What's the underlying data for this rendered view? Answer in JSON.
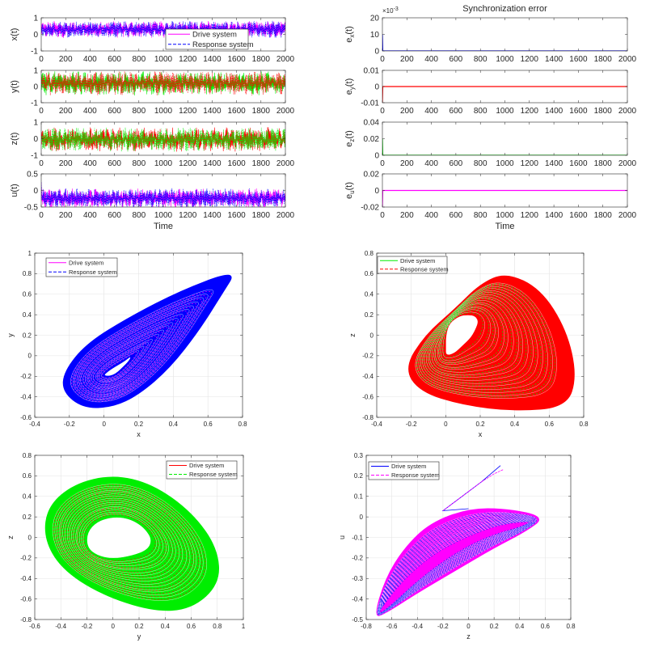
{
  "chart_data": [
    {
      "type": "line",
      "id": "x_t",
      "ylabel": "x",
      "ylabel_sub": "",
      "ylabel_suffix": "(t)",
      "xlim": [
        0,
        2000
      ],
      "ylim": [
        -1,
        1
      ],
      "xticks": [
        "0",
        "200",
        "400",
        "600",
        "800",
        "1000",
        "1200",
        "1400",
        "1600",
        "1800",
        "2000"
      ],
      "yticks": [
        "-1",
        "0",
        "1"
      ],
      "xlabel": "",
      "series": [
        {
          "name": "Drive system",
          "color": "#ff00ff",
          "style": "solid",
          "range": [
            -0.15,
            0.75
          ],
          "start": 0.1
        },
        {
          "name": "Response system",
          "color": "#0000ff",
          "style": "dashed",
          "range": [
            -0.15,
            0.75
          ],
          "start": 0.1
        }
      ],
      "legend": {
        "entries": [
          "Drive system",
          "Response system"
        ],
        "position": "bottom-center"
      }
    },
    {
      "type": "line",
      "id": "y_t",
      "ylabel": "y",
      "ylabel_sub": "",
      "ylabel_suffix": "(t)",
      "xlim": [
        0,
        2000
      ],
      "ylim": [
        -1,
        1
      ],
      "xticks": [
        "0",
        "200",
        "400",
        "600",
        "800",
        "1000",
        "1200",
        "1400",
        "1600",
        "1800",
        "2000"
      ],
      "yticks": [
        "-1",
        "0",
        "1"
      ],
      "xlabel": "",
      "series": [
        {
          "name": "Drive system",
          "color": "#00ee00",
          "style": "solid",
          "range": [
            -0.45,
            0.85
          ],
          "start": 0.0
        },
        {
          "name": "Response system",
          "color": "#ff0000",
          "style": "dashed",
          "range": [
            -0.45,
            0.85
          ],
          "start": 0.0
        }
      ]
    },
    {
      "type": "line",
      "id": "z_t",
      "ylabel": "z",
      "ylabel_sub": "",
      "ylabel_suffix": "(t)",
      "xlim": [
        0,
        2000
      ],
      "ylim": [
        -1,
        1
      ],
      "xticks": [
        "0",
        "200",
        "400",
        "600",
        "800",
        "1000",
        "1200",
        "1400",
        "1600",
        "1800",
        "2000"
      ],
      "yticks": [
        "-1",
        "0",
        "1"
      ],
      "xlabel": "",
      "series": [
        {
          "name": "Drive system",
          "color": "#ff0000",
          "style": "solid",
          "range": [
            -0.7,
            0.6
          ],
          "start": 0.0
        },
        {
          "name": "Response system",
          "color": "#00ee00",
          "style": "dashed",
          "range": [
            -0.7,
            0.6
          ],
          "start": 0.0
        }
      ]
    },
    {
      "type": "line",
      "id": "u_t",
      "ylabel": "u",
      "ylabel_sub": "",
      "ylabel_suffix": "(t)",
      "xlim": [
        0,
        2000
      ],
      "ylim": [
        -0.5,
        0.5
      ],
      "xticks": [
        "0",
        "200",
        "400",
        "600",
        "800",
        "1000",
        "1200",
        "1400",
        "1600",
        "1800",
        "2000"
      ],
      "yticks": [
        "-0.5",
        "0",
        "0.5"
      ],
      "xlabel": "Time",
      "series": [
        {
          "name": "Drive system",
          "color": "#ff00ff",
          "style": "solid",
          "range": [
            -0.5,
            0.03
          ],
          "start": 0.25
        },
        {
          "name": "Response system",
          "color": "#0000ff",
          "style": "dashed",
          "range": [
            -0.5,
            0.03
          ],
          "start": 0.25
        }
      ]
    },
    {
      "type": "line",
      "id": "e_x",
      "title": "Synchronization error",
      "ylabel": "e",
      "ylabel_sub": "x",
      "ylabel_suffix": "(t)",
      "xlim": [
        0,
        2000
      ],
      "ylim": [
        0,
        20
      ],
      "exponent_label": "×10",
      "exponent_power": "-3",
      "xticks": [
        "0",
        "200",
        "400",
        "600",
        "800",
        "1000",
        "1200",
        "1400",
        "1600",
        "1800",
        "2000"
      ],
      "yticks": [
        "0",
        "10",
        "20"
      ],
      "xlabel": "",
      "series": [
        {
          "name": "e_x",
          "color": "#0000ff",
          "x": [
            0,
            3,
            2000
          ],
          "y": [
            10,
            0,
            0
          ]
        }
      ]
    },
    {
      "type": "line",
      "id": "e_y",
      "ylabel": "e",
      "ylabel_sub": "y",
      "ylabel_suffix": "(t)",
      "xlim": [
        0,
        2000
      ],
      "ylim": [
        -0.01,
        0.01
      ],
      "xticks": [
        "0",
        "200",
        "400",
        "600",
        "800",
        "1000",
        "1200",
        "1400",
        "1600",
        "1800",
        "2000"
      ],
      "yticks": [
        "-0.01",
        "0",
        "0.01"
      ],
      "xlabel": "",
      "series": [
        {
          "name": "e_y",
          "color": "#ff0000",
          "x": [
            0,
            3,
            2000
          ],
          "y": [
            -0.01,
            0,
            0
          ]
        }
      ]
    },
    {
      "type": "line",
      "id": "e_z",
      "ylabel": "e",
      "ylabel_sub": "z",
      "ylabel_suffix": "(t)",
      "xlim": [
        0,
        2000
      ],
      "ylim": [
        0,
        0.04
      ],
      "xticks": [
        "0",
        "200",
        "400",
        "600",
        "800",
        "1000",
        "1200",
        "1400",
        "1600",
        "1800",
        "2000"
      ],
      "yticks": [
        "0",
        "0.02",
        "0.04"
      ],
      "xlabel": "",
      "series": [
        {
          "name": "e_z",
          "color": "#00cc00",
          "x": [
            0,
            3,
            2000
          ],
          "y": [
            0.02,
            0,
            0
          ]
        }
      ]
    },
    {
      "type": "line",
      "id": "e_u",
      "ylabel": "e",
      "ylabel_sub": "u",
      "ylabel_suffix": "(t)",
      "xlim": [
        0,
        2000
      ],
      "ylim": [
        -0.02,
        0.02
      ],
      "xticks": [
        "0",
        "200",
        "400",
        "600",
        "800",
        "1000",
        "1200",
        "1400",
        "1600",
        "1800",
        "2000"
      ],
      "yticks": [
        "-0.02",
        "0",
        "0.02"
      ],
      "xlabel": "Time",
      "series": [
        {
          "name": "e_u",
          "color": "#ff00ff",
          "x": [
            0,
            3,
            2000
          ],
          "y": [
            -0.02,
            0,
            0
          ]
        }
      ]
    },
    {
      "type": "line",
      "id": "phase_xy",
      "xlabel": "x",
      "ylabel": "y",
      "xlim": [
        -0.4,
        0.8
      ],
      "ylim": [
        -0.6,
        1
      ],
      "grid": true,
      "xticks": [
        "-0.4",
        "-0.2",
        "0",
        "0.2",
        "0.4",
        "0.6",
        "0.8"
      ],
      "yticks": [
        "-0.6",
        "-0.4",
        "-0.2",
        "0",
        "0.2",
        "0.4",
        "0.6",
        "0.8",
        "1"
      ],
      "fill_color": "#0000ff",
      "ring_color": "#ff00ff",
      "fill_hole": true,
      "outer": [
        [
          0.77,
          0.84
        ],
        [
          0.45,
          0.64
        ],
        [
          0.15,
          0.38
        ],
        [
          -0.1,
          0.12
        ],
        [
          -0.23,
          -0.15
        ],
        [
          -0.24,
          -0.35
        ],
        [
          -0.12,
          -0.51
        ],
        [
          0.05,
          -0.5
        ],
        [
          0.2,
          -0.38
        ],
        [
          0.38,
          -0.12
        ],
        [
          0.55,
          0.25
        ],
        [
          0.68,
          0.6
        ]
      ],
      "inner": [
        [
          0.15,
          -0.01
        ],
        [
          0.12,
          -0.05
        ],
        [
          0.08,
          -0.09
        ],
        [
          0.04,
          -0.13
        ],
        [
          0.01,
          -0.17
        ],
        [
          0,
          -0.19
        ],
        [
          0.02,
          -0.2
        ],
        [
          0.05,
          -0.19
        ],
        [
          0.08,
          -0.16
        ],
        [
          0.11,
          -0.11
        ],
        [
          0.14,
          -0.06
        ],
        [
          0.155,
          -0.02
        ]
      ],
      "legend": {
        "entries": [
          "Drive system",
          "Response system"
        ],
        "colors": [
          "#ff00ff",
          "#0000ff"
        ],
        "position": "top-left"
      }
    },
    {
      "type": "line",
      "id": "phase_xz",
      "xlabel": "x",
      "ylabel": "z",
      "xlim": [
        -0.4,
        0.8
      ],
      "ylim": [
        -0.8,
        0.8
      ],
      "grid": true,
      "xticks": [
        "-0.4",
        "-0.2",
        "0",
        "0.2",
        "0.4",
        "0.6",
        "0.8"
      ],
      "yticks": [
        "-0.8",
        "-0.6",
        "-0.4",
        "-0.2",
        "0",
        "0.2",
        "0.4",
        "0.6",
        "0.8"
      ],
      "fill_color": "#ff0000",
      "ring_color": "#00ee00",
      "fill_hole": true,
      "outer": [
        [
          0.35,
          0.61
        ],
        [
          0.2,
          0.5
        ],
        [
          0.05,
          0.25
        ],
        [
          -0.12,
          0
        ],
        [
          -0.24,
          -0.32
        ],
        [
          -0.15,
          -0.55
        ],
        [
          0.1,
          -0.68
        ],
        [
          0.4,
          -0.74
        ],
        [
          0.7,
          -0.7
        ],
        [
          0.76,
          -0.4
        ],
        [
          0.7,
          0.05
        ],
        [
          0.55,
          0.45
        ]
      ],
      "inner": [
        [
          0.13,
          0.2
        ],
        [
          0.08,
          0.19
        ],
        [
          0.02,
          0.12
        ],
        [
          0,
          0
        ],
        [
          0,
          -0.12
        ],
        [
          0,
          -0.2
        ],
        [
          0.05,
          -0.18
        ],
        [
          0.1,
          -0.1
        ],
        [
          0.15,
          -0.02
        ],
        [
          0.18,
          0.08
        ],
        [
          0.19,
          0.14
        ],
        [
          0.17,
          0.19
        ]
      ],
      "legend": {
        "entries": [
          "Drive system",
          "Response system"
        ],
        "colors": [
          "#00ee00",
          "#ff0000"
        ],
        "position": "top-left"
      }
    },
    {
      "type": "line",
      "id": "phase_yz",
      "xlabel": "y",
      "ylabel": "z",
      "xlim": [
        -0.6,
        1
      ],
      "ylim": [
        -0.8,
        0.8
      ],
      "grid": true,
      "xticks": [
        "-0.6",
        "-0.4",
        "-0.2",
        "0",
        "0.2",
        "0.4",
        "0.6",
        "0.8",
        "1"
      ],
      "yticks": [
        "-0.8",
        "-0.6",
        "-0.4",
        "-0.2",
        "0",
        "0.2",
        "0.4",
        "0.6",
        "0.8"
      ],
      "fill_color": "#00ee00",
      "ring_color": "#ff0000",
      "fill_hole": true,
      "outer": [
        [
          0,
          0.61
        ],
        [
          -0.3,
          0.52
        ],
        [
          -0.5,
          0.3
        ],
        [
          -0.53,
          0.0
        ],
        [
          -0.4,
          -0.3
        ],
        [
          -0.1,
          -0.55
        ],
        [
          0.3,
          -0.72
        ],
        [
          0.6,
          -0.7
        ],
        [
          0.82,
          -0.45
        ],
        [
          0.8,
          -0.1
        ],
        [
          0.6,
          0.25
        ],
        [
          0.3,
          0.52
        ]
      ],
      "inner": [
        [
          0,
          0.2
        ],
        [
          -0.12,
          0.16
        ],
        [
          -0.2,
          0.05
        ],
        [
          -0.2,
          -0.1
        ],
        [
          -0.12,
          -0.18
        ],
        [
          0,
          -0.21
        ],
        [
          0.15,
          -0.18
        ],
        [
          0.27,
          -0.12
        ],
        [
          0.3,
          -0.02
        ],
        [
          0.25,
          0.08
        ],
        [
          0.18,
          0.15
        ],
        [
          0.1,
          0.19
        ]
      ],
      "legend": {
        "entries": [
          "Drive system",
          "Response system"
        ],
        "colors": [
          "#ff0000",
          "#00ee00"
        ],
        "position": "top-right"
      }
    },
    {
      "type": "line",
      "id": "phase_zu",
      "xlabel": "z",
      "ylabel": "u",
      "xlim": [
        -0.8,
        0.8
      ],
      "ylim": [
        -0.5,
        0.3
      ],
      "grid": true,
      "xticks": [
        "-0.8",
        "-0.6",
        "-0.4",
        "-0.2",
        "0",
        "0.2",
        "0.4",
        "0.6",
        "0.8"
      ],
      "yticks": [
        "-0.5",
        "-0.4",
        "-0.3",
        "-0.2",
        "-0.1",
        "0",
        "0.1",
        "0.2",
        "0.3"
      ],
      "fill_color": "#ff00ff",
      "ring_color": "#0000ff",
      "fill_hole": false,
      "outer": [
        [
          -0.74,
          -0.49
        ],
        [
          -0.65,
          -0.3
        ],
        [
          -0.5,
          -0.15
        ],
        [
          -0.3,
          -0.03
        ],
        [
          0,
          0.04
        ],
        [
          0.3,
          0.04
        ],
        [
          0.6,
          0
        ],
        [
          0.45,
          -0.07
        ],
        [
          0.2,
          -0.15
        ],
        [
          -0.1,
          -0.26
        ],
        [
          -0.4,
          -0.37
        ],
        [
          -0.65,
          -0.47
        ]
      ],
      "inner": [
        [
          -0.72,
          -0.48
        ],
        [
          -0.6,
          -0.38
        ],
        [
          -0.45,
          -0.28
        ],
        [
          -0.25,
          -0.18
        ],
        [
          0,
          -0.1
        ],
        [
          0.25,
          -0.04
        ],
        [
          0.5,
          -0.02
        ],
        [
          0.4,
          -0.05
        ],
        [
          0.2,
          -0.08
        ],
        [
          -0.05,
          -0.15
        ],
        [
          -0.35,
          -0.28
        ],
        [
          -0.62,
          -0.44
        ]
      ],
      "transient": [
        [
          0.25,
          0.25
        ],
        [
          0.1,
          0.17
        ],
        [
          -0.05,
          0.1
        ],
        [
          -0.2,
          0.03
        ],
        [
          0,
          0.04
        ]
      ],
      "transient_response": [
        [
          0.27,
          0.23
        ],
        [
          0.2,
          0.21
        ],
        [
          0.1,
          0.17
        ],
        [
          -0.05,
          0.1
        ],
        [
          -0.2,
          0.03
        ]
      ],
      "legend": {
        "entries": [
          "Drive system",
          "Response system"
        ],
        "colors": [
          "#0000ff",
          "#ff00ff"
        ],
        "position": "top-left"
      }
    }
  ]
}
